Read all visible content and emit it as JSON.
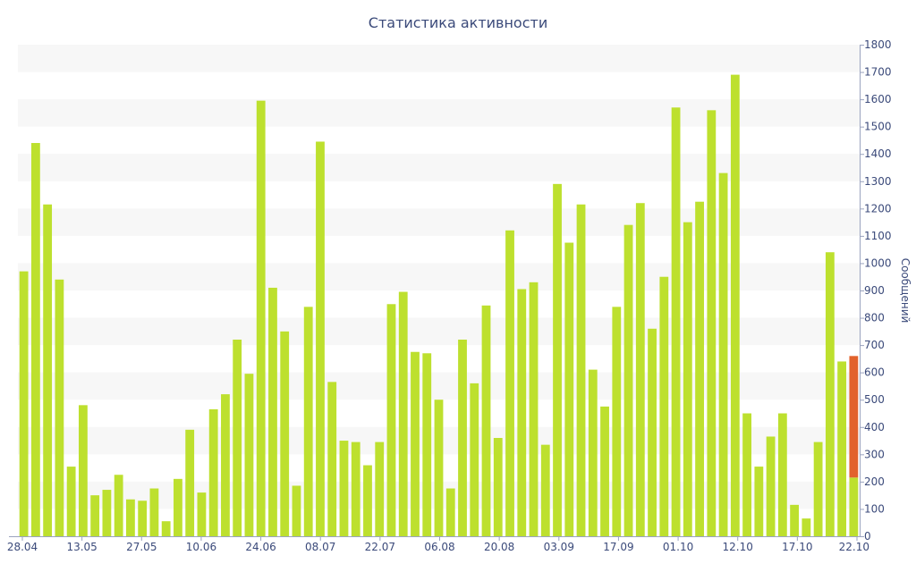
{
  "chart_data": {
    "type": "bar",
    "title": "Статистика активности",
    "ylabel": "Сообщений",
    "xlabel": "",
    "ylim": [
      0,
      1800
    ],
    "y_ticks": [
      0,
      100,
      200,
      300,
      400,
      500,
      600,
      700,
      800,
      900,
      1000,
      1100,
      1200,
      1300,
      1400,
      1500,
      1600,
      1700,
      1800
    ],
    "x_tick_labels": [
      "28.04",
      "13.05",
      "27.05",
      "10.06",
      "24.06",
      "08.07",
      "22.07",
      "06.08",
      "20.08",
      "03.09",
      "17.09",
      "01.10",
      "12.10",
      "17.10",
      "22.10"
    ],
    "grid": "alternating horizontal bands",
    "y_axis_position": "right",
    "colors": {
      "bar": "#bde02e",
      "highlight": "#e2622c",
      "axis_text": "#3b4a7a",
      "band": "#f7f7f7"
    },
    "values": [
      970,
      1440,
      1215,
      940,
      255,
      480,
      150,
      170,
      225,
      135,
      130,
      175,
      55,
      210,
      390,
      160,
      465,
      520,
      720,
      595,
      1595,
      910,
      750,
      185,
      840,
      1445,
      565,
      350,
      345,
      260,
      345,
      850,
      895,
      675,
      670,
      500,
      175,
      720,
      560,
      845,
      360,
      1120,
      905,
      930,
      335,
      1290,
      1075,
      1215,
      610,
      475,
      840,
      1140,
      1220,
      760,
      950,
      1570,
      1150,
      1225,
      1560,
      1330,
      1690,
      450,
      255,
      365,
      450,
      115,
      65,
      345,
      1040,
      640,
      660
    ],
    "highlight_last": {
      "total": 660,
      "base": 215
    }
  }
}
